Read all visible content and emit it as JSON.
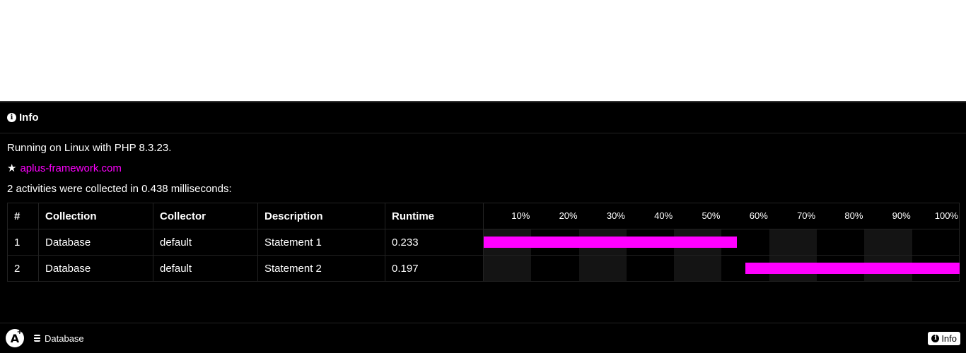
{
  "panel": {
    "title": "Info",
    "runtime_line": "Running on Linux with PHP 8.3.23.",
    "star": "★",
    "link_text": "aplus-framework.com",
    "summary": "2 activities were collected in 0.438 milliseconds:"
  },
  "table": {
    "headers": [
      "#",
      "Collection",
      "Collector",
      "Description",
      "Runtime"
    ],
    "ticks": [
      "10%",
      "20%",
      "30%",
      "40%",
      "50%",
      "60%",
      "70%",
      "80%",
      "90%",
      "100%"
    ],
    "rows": [
      {
        "num": "1",
        "collection": "Database",
        "collector": "default",
        "description": "Statement 1",
        "runtime": "0.233",
        "start": 0.0,
        "end": 0.532
      },
      {
        "num": "2",
        "collection": "Database",
        "collector": "default",
        "description": "Statement 2",
        "runtime": "0.197",
        "start": 0.55,
        "end": 1.0
      }
    ]
  },
  "toolbar": {
    "logo": "A",
    "logo_plus": "+",
    "database_label": "Database",
    "info_label": "Info"
  },
  "colors": {
    "accent": "#ff00ff",
    "background": "#000000"
  }
}
